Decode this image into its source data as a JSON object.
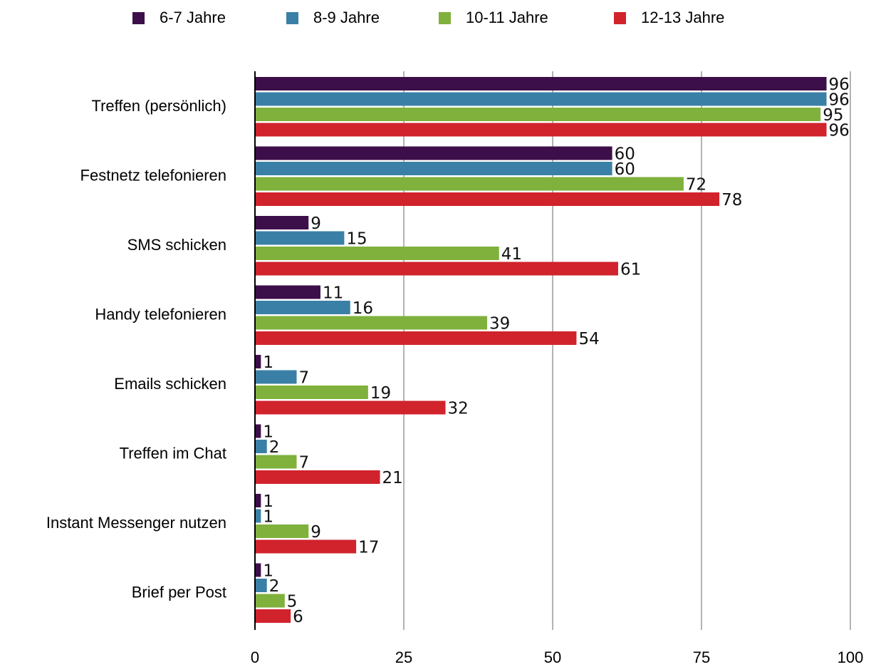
{
  "chart_data": {
    "type": "bar",
    "orientation": "horizontal",
    "categories": [
      "Treffen (persönlich)",
      "Festnetz telefonieren",
      "SMS schicken",
      "Handy telefonieren",
      "Emails schicken",
      "Treffen im Chat",
      "Instant Messenger nutzen",
      "Brief per Post"
    ],
    "series": [
      {
        "name": "6-7 Jahre",
        "color": "#3d0f4a",
        "values": [
          96,
          60,
          9,
          11,
          1,
          1,
          1,
          1
        ]
      },
      {
        "name": "8-9 Jahre",
        "color": "#3a80a6",
        "values": [
          96,
          60,
          15,
          16,
          7,
          2,
          1,
          2
        ]
      },
      {
        "name": "10-11 Jahre",
        "color": "#7fb13c",
        "values": [
          95,
          72,
          41,
          39,
          19,
          7,
          9,
          5
        ]
      },
      {
        "name": "12-13 Jahre",
        "color": "#d1232c",
        "values": [
          96,
          78,
          61,
          54,
          32,
          21,
          17,
          6
        ]
      }
    ],
    "xlim": [
      0,
      100
    ],
    "xticks": [
      0,
      25,
      50,
      75,
      100
    ],
    "grid": "vertical",
    "legend": "top",
    "data_labels": true
  }
}
